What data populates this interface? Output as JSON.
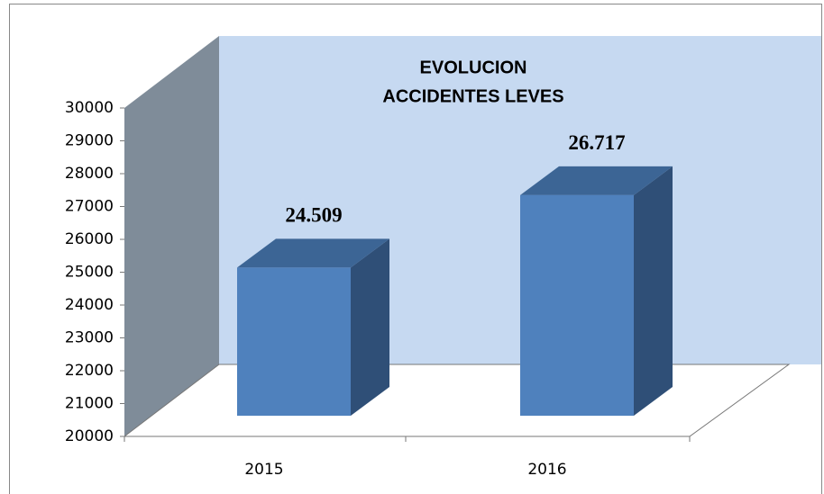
{
  "chart_data": {
    "type": "bar3d",
    "title": [
      "EVOLUCION",
      "ACCIDENTES LEVES"
    ],
    "categories": [
      "2015",
      "2016"
    ],
    "values": [
      24509,
      26717
    ],
    "value_labels": [
      "24.509",
      "26.717"
    ],
    "color": "#4f81bd",
    "ylim": [
      20000,
      30000
    ],
    "yticks": [
      20000,
      21000,
      22000,
      23000,
      24000,
      25000,
      26000,
      27000,
      28000,
      29000,
      30000
    ],
    "grid": false
  }
}
